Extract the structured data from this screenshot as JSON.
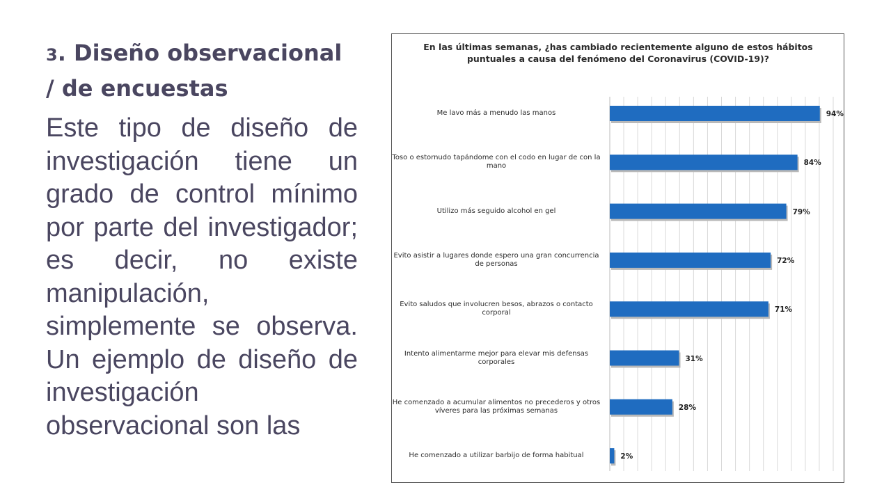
{
  "slide": {
    "title_number": "3",
    "title_text": ". Diseño observacional / de encuestas",
    "body": "Este tipo de diseño de investigación tiene un grado de control mínimo por parte del investigador; es decir, no existe manipulación, simplemente se observa. Un ejemplo de diseño de investigación observacional son las"
  },
  "colors": {
    "bar": "#1f6cc0",
    "bar_shadow": "#b9b9b9",
    "grid": "#d9d9d9",
    "text": "#4a4660"
  },
  "chart_data": {
    "type": "bar",
    "orientation": "horizontal",
    "title": "En las últimas semanas, ¿has cambiado recientemente alguno de estos hábitos puntuales a causa del fenómeno del Coronavirus (COVID-19)?",
    "categories": [
      "Me lavo más a menudo las manos",
      "Toso o estornudo tapándome con el codo en lugar de con la mano",
      "Utilizo más seguido alcohol en gel",
      "Evito asistir a lugares donde espero una gran concurrencia de personas",
      "Evito saludos que involucren besos, abrazos o contacto corporal",
      "Intento alimentarme mejor para elevar mis defensas corporales",
      "He comenzado a acumular alimentos no precederos y otros víveres para las próximas semanas",
      "He comenzado a utilizar barbijo de forma habitual"
    ],
    "values": [
      94,
      84,
      79,
      72,
      71,
      31,
      28,
      2
    ],
    "data_labels": [
      "94%",
      "84%",
      "79%",
      "72%",
      "71%",
      "31%",
      "28%",
      "2%"
    ],
    "xlim": [
      0,
      100
    ],
    "grid": true,
    "legend": "none"
  }
}
